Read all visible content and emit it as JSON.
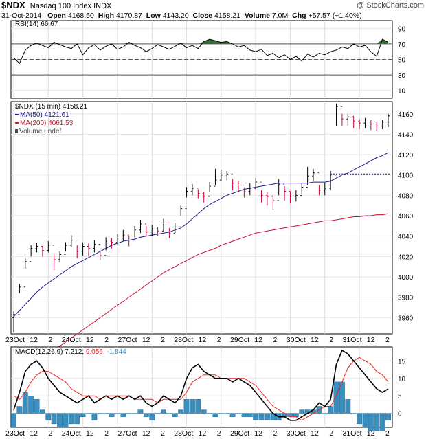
{
  "header": {
    "symbol": "$NDX",
    "name": "Nasdaq 100 Index",
    "exchange": "INDX",
    "watermark": "@ StockCharts.com",
    "date": "31-Oct-2014",
    "open_label": "Open",
    "open": "4168.50",
    "high_label": "High",
    "high": "4170.87",
    "low_label": "Low",
    "low": "4143.20",
    "close_label": "Close",
    "close": "4158.21",
    "volume_label": "Volume",
    "volume": "7.0M",
    "chg_label": "Chg",
    "chg": "+57.57 (+1.40%)"
  },
  "panels": {
    "rsi_label": "RSI(14) 66.67",
    "price_label": "$NDX (15 min) 4158.21",
    "ma50_label": "MA(50) 4121.61",
    "ma200_label": "MA(200) 4061.53",
    "volume_label": "Volume undef",
    "macd_label": "MACD(12,26,9)",
    "macd_value": "7.212,",
    "macd_signal": "9.056,",
    "macd_hist": "-1.844"
  },
  "colors": {
    "price_up": "#000000",
    "price_down": "#cc0033",
    "ma50": "#1a1a8c",
    "ma200": "#cc1133",
    "rsi_fill": "#3a6b3a",
    "macd_line": "#000000",
    "macd_signal": "#ee2222",
    "macd_hist": "#3a8fbf",
    "ref_line": "#0000cc"
  },
  "chart_data": [
    {
      "type": "line",
      "title": "RSI(14) 66.67",
      "y_ticks": [
        10,
        30,
        50,
        70,
        90
      ],
      "ylim": [
        0,
        100
      ],
      "levels": [
        30,
        50,
        70
      ],
      "x": [
        0,
        6,
        12,
        18,
        24,
        30,
        36,
        42,
        48,
        54,
        60,
        66,
        72,
        78,
        84,
        90,
        96,
        102,
        108,
        114,
        120,
        126,
        132,
        138,
        144,
        150,
        156,
        162,
        168,
        174,
        180,
        186,
        192,
        198,
        204,
        210,
        216,
        222,
        228,
        234,
        240,
        246,
        252,
        258,
        264,
        270,
        276,
        282,
        288,
        294,
        300,
        306,
        312,
        318,
        324,
        330,
        336,
        342,
        348,
        354,
        360,
        366,
        372,
        378,
        384,
        390
      ],
      "values": [
        52,
        45,
        62,
        68,
        71,
        68,
        65,
        72,
        69,
        66,
        64,
        70,
        56,
        65,
        69,
        62,
        67,
        70,
        63,
        66,
        72,
        68,
        65,
        60,
        64,
        69,
        66,
        63,
        67,
        71,
        65,
        68,
        64,
        73,
        76,
        74,
        72,
        73,
        70,
        66,
        68,
        62,
        60,
        63,
        55,
        58,
        52,
        56,
        50,
        54,
        48,
        57,
        53,
        58,
        56,
        60,
        62,
        66,
        64,
        70,
        66,
        68,
        60,
        54,
        76,
        72
      ]
    },
    {
      "type": "line",
      "title": "$NDX (15 min) 4158.21",
      "series_names": [
        "MA(50) 4121.61",
        "MA(200) 4061.53"
      ],
      "y_ticks": [
        3960,
        3980,
        4000,
        4020,
        4040,
        4060,
        4080,
        4100,
        4120,
        4140,
        4160
      ],
      "ylim": [
        3944,
        4172
      ],
      "x_tick_labels": [
        "23Oct",
        "12",
        "2",
        "24Oct",
        "12",
        "2",
        "27Oct",
        "12",
        "2",
        "28Oct",
        "12",
        "2",
        "29Oct",
        "12",
        "2",
        "30Oct",
        "12",
        "2",
        "31Oct",
        "12",
        "2"
      ],
      "x": [
        0,
        6,
        12,
        18,
        24,
        30,
        36,
        42,
        48,
        54,
        60,
        66,
        72,
        78,
        84,
        90,
        96,
        102,
        108,
        114,
        120,
        126,
        132,
        138,
        144,
        150,
        156,
        162,
        168,
        174,
        180,
        186,
        192,
        198,
        204,
        210,
        216,
        222,
        228,
        234,
        240,
        246,
        252,
        258,
        264,
        270,
        276,
        282,
        288,
        294,
        300,
        306,
        312,
        318,
        324,
        330,
        336,
        342,
        348,
        354,
        360,
        366,
        372,
        378,
        384,
        390
      ],
      "close": [
        3963,
        3990,
        4015,
        4028,
        4030,
        4026,
        4031,
        4017,
        4022,
        4031,
        4036,
        4025,
        4030,
        4028,
        4032,
        4021,
        4035,
        4034,
        4038,
        4041,
        4036,
        4046,
        4052,
        4044,
        4047,
        4045,
        4053,
        4043,
        4049,
        4067,
        4084,
        4087,
        4082,
        4079,
        4089,
        4095,
        4100,
        4101,
        4092,
        4090,
        4084,
        4087,
        4093,
        4080,
        4079,
        4075,
        4091,
        4084,
        4079,
        4080,
        4088,
        4099,
        4102,
        4085,
        4087,
        4100,
        4167,
        4155,
        4157,
        4153,
        4151,
        4152,
        4150,
        4148,
        4150,
        4158
      ],
      "high": [
        3966,
        3993,
        4019,
        4031,
        4033,
        4030,
        4035,
        4022,
        4025,
        4034,
        4041,
        4031,
        4034,
        4033,
        4036,
        4026,
        4039,
        4038,
        4042,
        4046,
        4040,
        4050,
        4056,
        4050,
        4051,
        4049,
        4057,
        4048,
        4053,
        4070,
        4088,
        4091,
        4086,
        4083,
        4093,
        4106,
        4105,
        4104,
        4096,
        4094,
        4088,
        4092,
        4097,
        4085,
        4083,
        4079,
        4096,
        4089,
        4083,
        4085,
        4092,
        4108,
        4106,
        4090,
        4092,
        4104,
        4170,
        4160,
        4160,
        4158,
        4155,
        4156,
        4154,
        4152,
        4154,
        4160
      ],
      "low": [
        3946,
        3984,
        4008,
        4020,
        4024,
        4020,
        4024,
        4007,
        4014,
        4025,
        4029,
        4018,
        4021,
        4020,
        4024,
        4016,
        4026,
        4028,
        4032,
        4035,
        4030,
        4039,
        4043,
        4040,
        4040,
        4040,
        4045,
        4038,
        4043,
        4060,
        4078,
        4080,
        4077,
        4073,
        4083,
        4090,
        4094,
        4095,
        4085,
        4083,
        4078,
        4080,
        4086,
        4073,
        4070,
        4066,
        4080,
        4075,
        4072,
        4074,
        4081,
        4090,
        4094,
        4080,
        4080,
        4085,
        4148,
        4148,
        4148,
        4146,
        4145,
        4146,
        4144,
        4143,
        4145,
        4147
      ],
      "ma50": [
        3961,
        3967,
        3973,
        3979,
        3985,
        3990,
        3994,
        3998,
        4002,
        4006,
        4010,
        4013,
        4016,
        4019,
        4022,
        4025,
        4028,
        4031,
        4033,
        4035,
        4036,
        4037,
        4039,
        4040,
        4041,
        4042,
        4043,
        4044,
        4046,
        4048,
        4052,
        4057,
        4062,
        4067,
        4071,
        4074,
        4077,
        4080,
        4082,
        4084,
        4086,
        4087,
        4088,
        4089,
        4090,
        4091,
        4092,
        4092,
        4092,
        4092,
        4092,
        4092,
        4093,
        4093,
        4093,
        4094,
        4097,
        4100,
        4102,
        4105,
        4108,
        4111,
        4114,
        4117,
        4119,
        4122
      ],
      "ma200": [
        3900,
        3904,
        3908,
        3912,
        3916,
        3920,
        3924,
        3928,
        3932,
        3936,
        3940,
        3944,
        3948,
        3952,
        3956,
        3960,
        3964,
        3968,
        3972,
        3976,
        3980,
        3984,
        3988,
        3992,
        3996,
        4000,
        4004,
        4007,
        4010,
        4013,
        4016,
        4019,
        4022,
        4024,
        4026,
        4028,
        4031,
        4033,
        4035,
        4037,
        4039,
        4041,
        4043,
        4044,
        4045,
        4046,
        4047,
        4048,
        4049,
        4050,
        4051,
        4052,
        4053,
        4054,
        4055,
        4055,
        4056,
        4057,
        4058,
        4059,
        4059,
        4060,
        4060,
        4061,
        4061,
        4062
      ],
      "ref_line": 4101
    },
    {
      "type": "line",
      "title": "MACD(12,26,9) 7.212, 9.056, -1.844",
      "series_names": [
        "MACD",
        "Signal",
        "Histogram"
      ],
      "y_ticks": [
        0,
        5,
        10,
        15
      ],
      "ylim": [
        -4,
        19
      ],
      "x_tick_labels": [
        "23Oct",
        "12",
        "2",
        "24Oct",
        "12",
        "2",
        "27Oct",
        "12",
        "2",
        "28Oct",
        "12",
        "2",
        "29Oct",
        "12",
        "2",
        "30Oct",
        "12",
        "2",
        "31Oct",
        "12",
        "2"
      ],
      "x": [
        0,
        6,
        12,
        18,
        24,
        30,
        36,
        42,
        48,
        54,
        60,
        66,
        72,
        78,
        84,
        90,
        96,
        102,
        108,
        114,
        120,
        126,
        132,
        138,
        144,
        150,
        156,
        162,
        168,
        174,
        180,
        186,
        192,
        198,
        204,
        210,
        216,
        222,
        228,
        234,
        240,
        246,
        252,
        258,
        264,
        270,
        276,
        282,
        288,
        294,
        300,
        306,
        312,
        318,
        324,
        330,
        336,
        342,
        348,
        354,
        360,
        366,
        372,
        378,
        384,
        390
      ],
      "macd": [
        1,
        6,
        12,
        14,
        15,
        13,
        10,
        8,
        6,
        5,
        4,
        3,
        4,
        5,
        3,
        4,
        5,
        4,
        5,
        4,
        5,
        4,
        5,
        3,
        2,
        3,
        5,
        4,
        3,
        5,
        10,
        13,
        14,
        12,
        11,
        10,
        10,
        10,
        9,
        10,
        9,
        8,
        6,
        4,
        2,
        0,
        -1,
        -1,
        -2,
        -2,
        -1,
        0,
        1,
        3,
        2,
        4,
        14,
        18,
        17,
        15,
        13,
        11,
        9,
        7,
        6,
        7
      ],
      "signal": [
        5,
        4,
        6,
        9,
        11,
        12,
        12,
        11,
        10,
        9,
        7,
        6,
        5,
        5,
        5,
        4,
        5,
        5,
        5,
        5,
        5,
        4,
        4,
        4,
        4,
        3,
        4,
        4,
        4,
        4,
        6,
        9,
        10,
        11,
        11,
        11,
        10,
        10,
        10,
        10,
        10,
        9,
        8,
        6,
        4,
        2,
        1,
        0,
        -1,
        -1,
        -2,
        -1,
        0,
        1,
        2,
        2,
        5,
        9,
        13,
        15,
        16,
        15,
        14,
        12,
        11,
        9
      ],
      "histogram": [
        -4,
        2,
        6,
        5,
        4,
        1,
        -2,
        -3,
        -4,
        -4,
        -3,
        -3,
        -1,
        0,
        -2,
        0,
        0,
        -1,
        0,
        -1,
        0,
        0,
        1,
        -1,
        -2,
        0,
        1,
        0,
        -1,
        1,
        4,
        4,
        4,
        1,
        0,
        -1,
        0,
        0,
        -1,
        0,
        -1,
        -1,
        -2,
        -2,
        -2,
        -2,
        -2,
        -1,
        -1,
        -1,
        1,
        1,
        1,
        2,
        0,
        2,
        9,
        9,
        4,
        0,
        -3,
        -4,
        -5,
        -5,
        -5,
        -2
      ]
    }
  ]
}
